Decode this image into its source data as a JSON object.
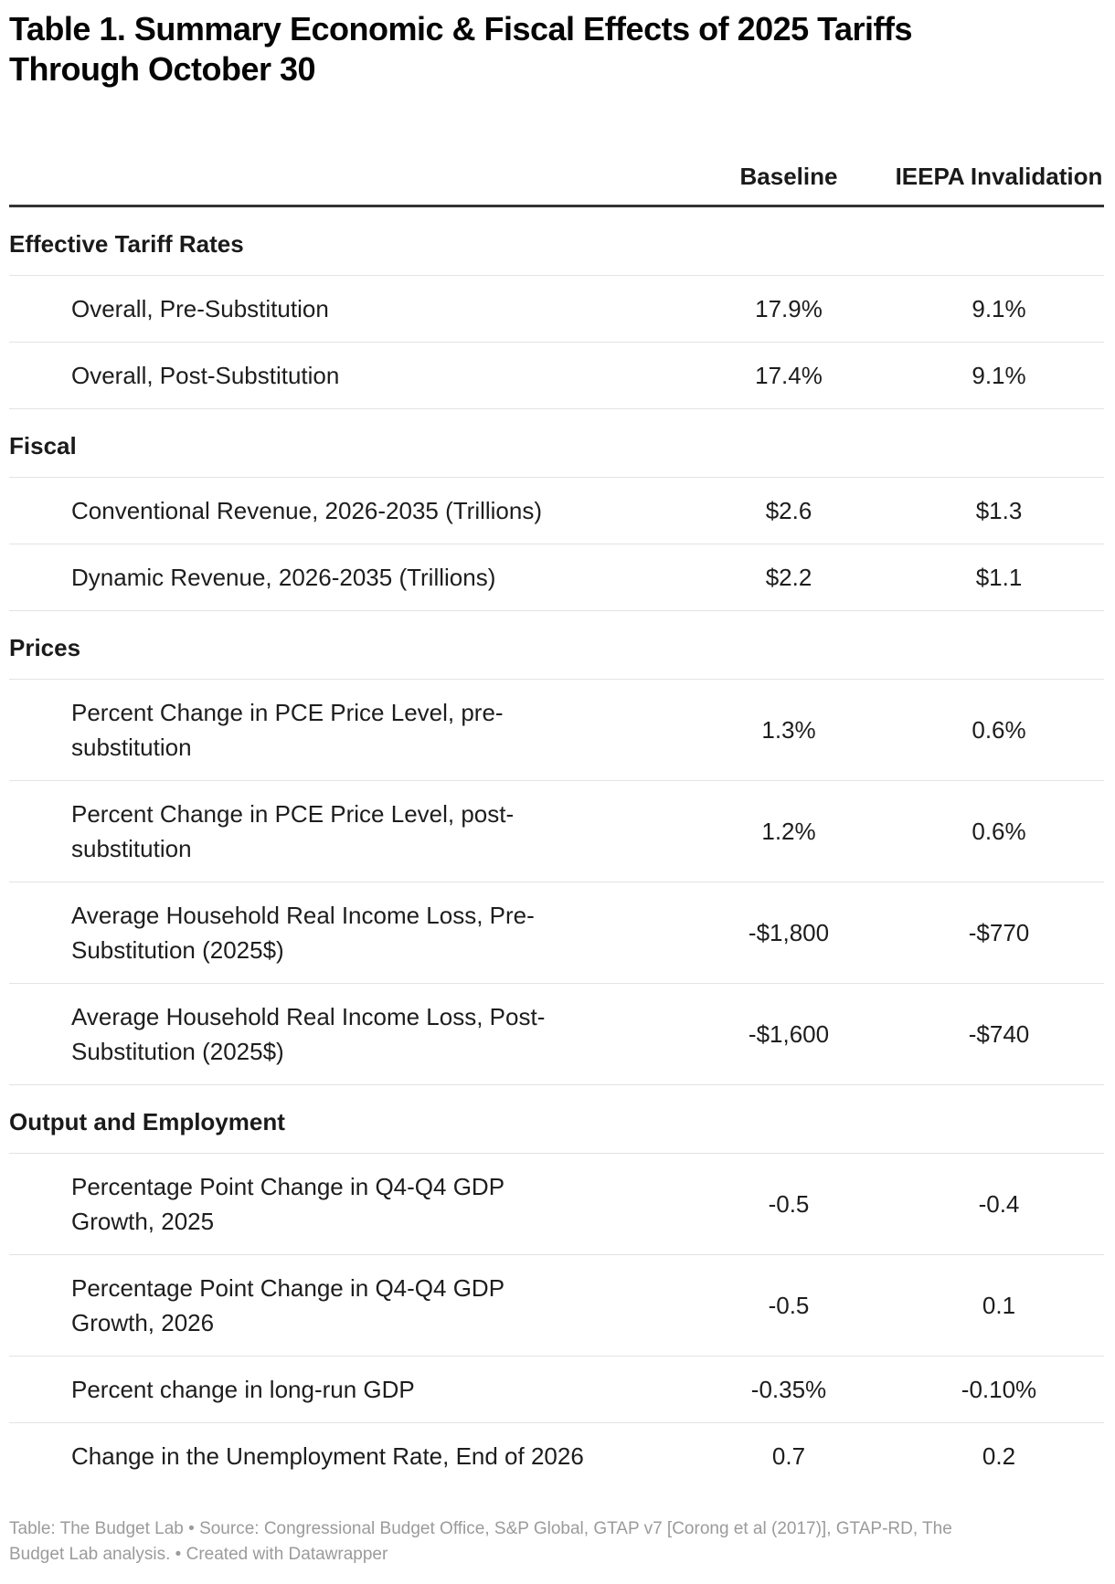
{
  "chart_data": {
    "type": "table",
    "title": "Table 1. Summary Economic & Fiscal Effects of 2025 Tariffs\nThrough October 30",
    "value_columns": [
      "Baseline",
      "IEEPA Invalidation"
    ],
    "sections": [
      {
        "name": "Effective Tariff Rates",
        "rows": [
          {
            "label": "Overall, Pre-Substitution",
            "values": [
              "17.9%",
              "9.1%"
            ]
          },
          {
            "label": "Overall, Post-Substitution",
            "values": [
              "17.4%",
              "9.1%"
            ]
          }
        ]
      },
      {
        "name": "Fiscal",
        "rows": [
          {
            "label": "Conventional Revenue, 2026-2035 (Trillions)",
            "values": [
              "$2.6",
              "$1.3"
            ]
          },
          {
            "label": "Dynamic Revenue, 2026-2035 (Trillions)",
            "values": [
              "$2.2",
              "$1.1"
            ]
          }
        ]
      },
      {
        "name": "Prices",
        "rows": [
          {
            "label": "Percent Change in PCE Price Level, pre-substitution",
            "values": [
              "1.3%",
              "0.6%"
            ]
          },
          {
            "label": "Percent Change in PCE Price Level, post-substitution",
            "values": [
              "1.2%",
              "0.6%"
            ]
          },
          {
            "label": "Average Household Real Income Loss, Pre-Substitution (2025$)",
            "values": [
              "-$1,800",
              "-$770"
            ]
          },
          {
            "label": "Average Household Real Income Loss, Post-Substitution (2025$)",
            "values": [
              "-$1,600",
              "-$740"
            ]
          }
        ]
      },
      {
        "name": "Output and Employment",
        "rows": [
          {
            "label": "Percentage Point Change in Q4-Q4 GDP Growth, 2025",
            "values": [
              "-0.5",
              "-0.4"
            ]
          },
          {
            "label": "Percentage Point Change in Q4-Q4 GDP Growth, 2026",
            "values": [
              "-0.5",
              "0.1"
            ]
          },
          {
            "label": "Percent change in long-run GDP",
            "values": [
              "-0.35%",
              "-0.10%"
            ]
          },
          {
            "label": "Change in the Unemployment Rate, End of 2026",
            "values": [
              "0.7",
              "0.2"
            ]
          }
        ]
      }
    ],
    "footer": "Table: The Budget Lab • Source: Congressional Budget Office, S&P Global, GTAP v7 [Corong et al (2017)], GTAP-RD, The Budget Lab analysis. • Created with Datawrapper"
  },
  "colors": {
    "background": "#ffffff",
    "title_text": "#050505",
    "body_text": "#1d1d1d",
    "heavy_rule": "#333333",
    "light_rule": "#e3e3e3",
    "footer_text": "#9b9b9b"
  }
}
